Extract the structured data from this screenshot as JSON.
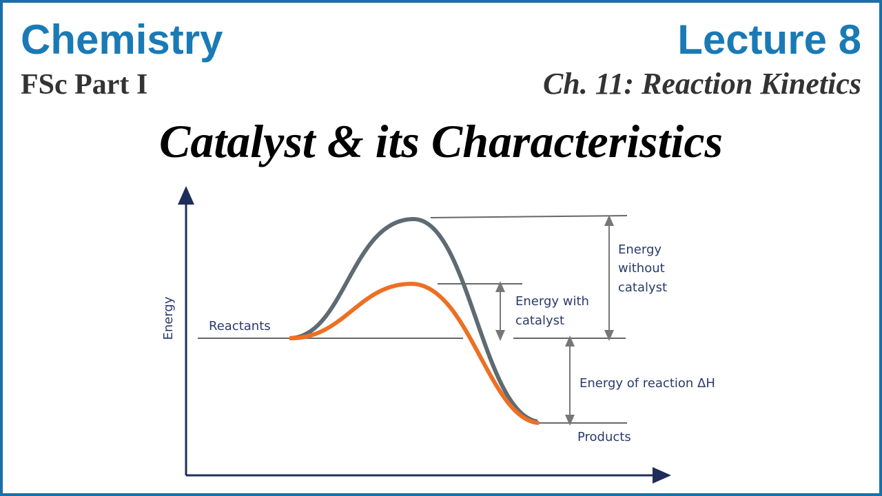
{
  "header": {
    "subject": "Chemistry",
    "level": "FSc Part I",
    "lecture": "Lecture 8",
    "chapter": "Ch. 11: Reaction Kinetics"
  },
  "title": "Catalyst & its Characteristics",
  "diagram": {
    "y_axis_label": "Energy",
    "reactants": "Reactants",
    "products": "Products",
    "energy_without_catalyst": [
      "Energy",
      "without",
      "catalyst"
    ],
    "energy_with_catalyst": [
      "Energy with",
      "catalyst"
    ],
    "energy_of_reaction": "Energy of reaction ΔH"
  }
}
